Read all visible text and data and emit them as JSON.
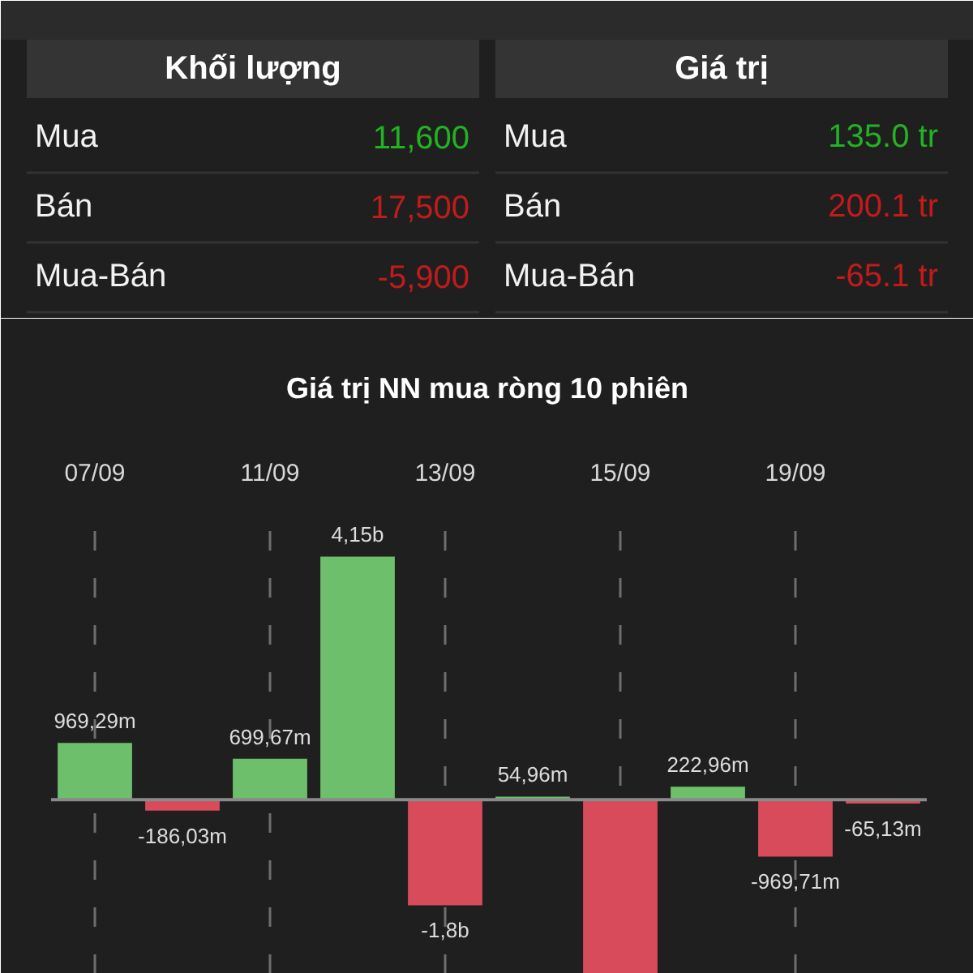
{
  "chart_data": [
    {
      "type": "other",
      "annotations": [
        "Khối lượng",
        "Giá trị",
        "Mua",
        "11,600",
        "Mua",
        "135.0 tr",
        "Bán",
        "17,500",
        "Bán",
        "200.1 tr",
        "Mua-Bán",
        "-5,900",
        "Mua-Bán",
        "-65.1 tr"
      ]
    },
    {
      "type": "bar",
      "title": "Giá trị NN mua ròng 10 phiên",
      "categories": [
        "07/09",
        null,
        "11/09",
        null,
        "13/09",
        null,
        "15/09",
        null,
        "19/09",
        null
      ],
      "values": [
        969290000,
        -186030000,
        699670000,
        4150000000,
        -1800000000,
        54960000,
        -2970000000,
        222960000,
        -969710000,
        -65130000
      ],
      "value_labels": [
        "969,29m",
        "-186,03m",
        "699,67m",
        "4,15b",
        "-1,8b",
        "54,96m",
        null,
        "222,96m",
        "-969,71m",
        "-65,13m"
      ],
      "colors": [
        "#6dbf6b",
        "#d84b5a",
        "#6dbf6b",
        "#6dbf6b",
        "#d84b5a",
        "#6dbf6b",
        "#d84b5a",
        "#6dbf6b",
        "#d84b5a",
        "#d84b5a"
      ],
      "ylim": [
        -2970000000,
        5000000000
      ],
      "grid": "x",
      "tick_labels": "x"
    }
  ]
}
